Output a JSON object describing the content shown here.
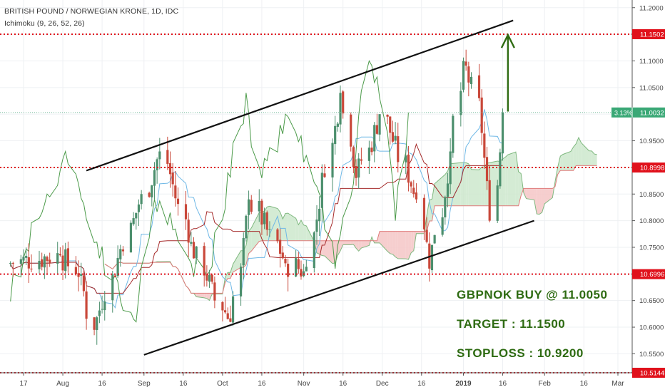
{
  "header": {
    "title": "BRITISH POUND / NORWEGIAN KRONE, 1D, IDC",
    "indicator": "Ichimoku (9, 26, 52, 26)"
  },
  "colors": {
    "bull": "#4c8f6d",
    "bear": "#c9483a",
    "level_line": "#e0111b",
    "tenkan": "#6fb8e6",
    "kijun": "#a52a2a",
    "lagging": "#4b9a49",
    "cloud_bear": "#f5c6c6",
    "cloud_bull": "#cce8cc",
    "last_price_badge": "#3aa876",
    "level_badge": "#e0111b",
    "annotation": "#2e6b12",
    "trend_line": "#111111"
  },
  "chart_data": {
    "type": "candlestick",
    "title": "BRITISH POUND / NORWEGIAN KRONE, 1D, IDC",
    "indicator": "Ichimoku (9, 26, 52, 26)",
    "x_tick_labels": [
      "17",
      "Aug",
      "16",
      "Sep",
      "16",
      "Oct",
      "16",
      "Nov",
      "16",
      "Dec",
      "16",
      "2019",
      "16",
      "Feb",
      "16",
      "Mar"
    ],
    "y_tick_labels": [
      "11.2000",
      "11.1000",
      "11.0500",
      "10.9500",
      "10.8500",
      "10.8000",
      "10.7500",
      "10.6500",
      "10.6000",
      "10.5500"
    ],
    "y_range": [
      10.5144,
      11.2144
    ],
    "grid": true,
    "horizontal_levels": [
      {
        "label": "11.1502",
        "value": 11.1502
      },
      {
        "label": "10.8998",
        "value": 10.8998
      },
      {
        "label": "10.6996",
        "value": 10.6996
      },
      {
        "label": "10.5144",
        "value": 10.5144
      }
    ],
    "last_price": {
      "value": 11.0032,
      "label": "11.0032",
      "change": "3.13%"
    },
    "trend_lines": [
      {
        "from": [
          "Aug 10 2018",
          10.894
        ],
        "to": [
          "Jan 20 2019",
          11.176
        ]
      },
      {
        "from": [
          "Sep 1 2018",
          10.548
        ],
        "to": [
          "Jan 28 2019",
          10.8
        ]
      }
    ],
    "target_arrow": {
      "date": "Jan 18 2019",
      "from": 11.005,
      "to": 11.15
    },
    "annotations": [
      "GBPNOK BUY @ 11.0050",
      "TARGET : 11.1500",
      "STOPLOSS : 10.9200"
    ],
    "ohlc_segments": [
      {
        "from": "Jul 12 2018",
        "to": "Aug 1 2018",
        "open": 10.72,
        "close": 10.735
      },
      {
        "from": "Aug 1 2018",
        "to": "Aug 9 2018",
        "open": 10.735,
        "close": 10.7
      },
      {
        "from": "Aug 9 2018",
        "to": "Aug 14 2018",
        "open": 10.7,
        "close": 10.595
      },
      {
        "from": "Aug 14 2018",
        "to": "Aug 23 2018",
        "open": 10.595,
        "close": 10.73
      },
      {
        "from": "Aug 23 2018",
        "to": "Sep 3 2018",
        "open": 10.73,
        "close": 10.85
      },
      {
        "from": "Sep 3 2018",
        "to": "Sep 8 2018",
        "open": 10.85,
        "close": 10.93
      },
      {
        "from": "Sep 8 2018",
        "to": "Sep 20 2018",
        "open": 10.93,
        "close": 10.76
      },
      {
        "from": "Sep 20 2018",
        "to": "Oct 1 2018",
        "open": 10.76,
        "close": 10.65
      },
      {
        "from": "Oct 1 2018",
        "to": "Oct 5 2018",
        "open": 10.65,
        "close": 10.61
      },
      {
        "from": "Oct 5 2018",
        "to": "Oct 12 2018",
        "open": 10.61,
        "close": 10.84
      },
      {
        "from": "Oct 12 2018",
        "to": "Oct 26 2018",
        "open": 10.84,
        "close": 10.72
      },
      {
        "from": "Oct 26 2018",
        "to": "Nov 2 2018",
        "open": 10.72,
        "close": 10.705
      },
      {
        "from": "Nov 2 2018",
        "to": "Nov 16 2018",
        "open": 10.705,
        "close": 11.04
      },
      {
        "from": "Nov 16 2018",
        "to": "Nov 22 2018",
        "open": 11.04,
        "close": 10.88
      },
      {
        "from": "Nov 22 2018",
        "to": "Dec 3 2018",
        "open": 10.88,
        "close": 11.0
      },
      {
        "from": "Dec 3 2018",
        "to": "Dec 17 2018",
        "open": 11.0,
        "close": 10.84
      },
      {
        "from": "Dec 17 2018",
        "to": "Dec 20 2018",
        "open": 10.84,
        "close": 10.71
      },
      {
        "from": "Dec 20 2018",
        "to": "Dec 28 2018",
        "open": 10.71,
        "close": 10.93
      },
      {
        "from": "Dec 28 2018",
        "to": "Jan 2 2019",
        "open": 10.93,
        "close": 11.1
      },
      {
        "from": "Jan 2 2019",
        "to": "Jan 8 2019",
        "open": 11.1,
        "close": 11.03
      },
      {
        "from": "Jan 8 2019",
        "to": "Jan 14 2019",
        "open": 11.03,
        "close": 10.8
      },
      {
        "from": "Jan 14 2019",
        "to": "Jan 17 2019",
        "open": 10.8,
        "close": 11.003
      }
    ]
  }
}
